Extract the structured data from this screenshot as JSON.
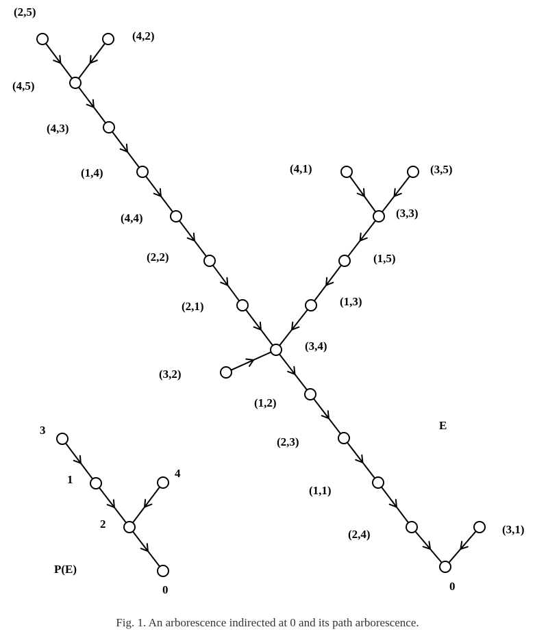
{
  "diagram_E": {
    "label": "E",
    "nodes": [
      {
        "id": "n25",
        "label": "(2,5)"
      },
      {
        "id": "n42",
        "label": "(4,2)"
      },
      {
        "id": "n45",
        "label": "(4,5)"
      },
      {
        "id": "n43",
        "label": "(4,3)"
      },
      {
        "id": "n14",
        "label": "(1,4)"
      },
      {
        "id": "n44",
        "label": "(4,4)"
      },
      {
        "id": "n22",
        "label": "(2,2)"
      },
      {
        "id": "n21",
        "label": "(2,1)"
      },
      {
        "id": "n34",
        "label": "(3,4)"
      },
      {
        "id": "n32",
        "label": "(3,2)"
      },
      {
        "id": "n41",
        "label": "(4,1)"
      },
      {
        "id": "n35",
        "label": "(3,5)"
      },
      {
        "id": "n33",
        "label": "(3,3)"
      },
      {
        "id": "n15",
        "label": "(1,5)"
      },
      {
        "id": "n13",
        "label": "(1,3)"
      },
      {
        "id": "n12",
        "label": "(1,2)"
      },
      {
        "id": "n23",
        "label": "(2,3)"
      },
      {
        "id": "n11",
        "label": "(1,1)"
      },
      {
        "id": "n24",
        "label": "(2,4)"
      },
      {
        "id": "n0",
        "label": "0"
      },
      {
        "id": "n31",
        "label": "(3,1)"
      }
    ],
    "edges": [
      [
        "n25",
        "n45"
      ],
      [
        "n42",
        "n45"
      ],
      [
        "n45",
        "n43"
      ],
      [
        "n43",
        "n14"
      ],
      [
        "n14",
        "n44"
      ],
      [
        "n44",
        "n22"
      ],
      [
        "n22",
        "n21"
      ],
      [
        "n21",
        "n34"
      ],
      [
        "n32",
        "n34"
      ],
      [
        "n41",
        "n33"
      ],
      [
        "n35",
        "n33"
      ],
      [
        "n33",
        "n15"
      ],
      [
        "n15",
        "n13"
      ],
      [
        "n13",
        "n34"
      ],
      [
        "n34",
        "n12"
      ],
      [
        "n12",
        "n23"
      ],
      [
        "n23",
        "n11"
      ],
      [
        "n11",
        "n24"
      ],
      [
        "n24",
        "n0"
      ],
      [
        "n31",
        "n0"
      ]
    ]
  },
  "diagram_PE": {
    "label": "P(E)",
    "nodes": [
      {
        "id": "p3",
        "label": "3"
      },
      {
        "id": "p1",
        "label": "1"
      },
      {
        "id": "p4",
        "label": "4"
      },
      {
        "id": "p2",
        "label": "2"
      },
      {
        "id": "p0",
        "label": "0"
      }
    ],
    "edges": [
      [
        "p3",
        "p1"
      ],
      [
        "p1",
        "p2"
      ],
      [
        "p4",
        "p2"
      ],
      [
        "p2",
        "p0"
      ]
    ]
  },
  "caption": "Fig. 1.   An arborescence indirected at 0 and its path arborescence."
}
